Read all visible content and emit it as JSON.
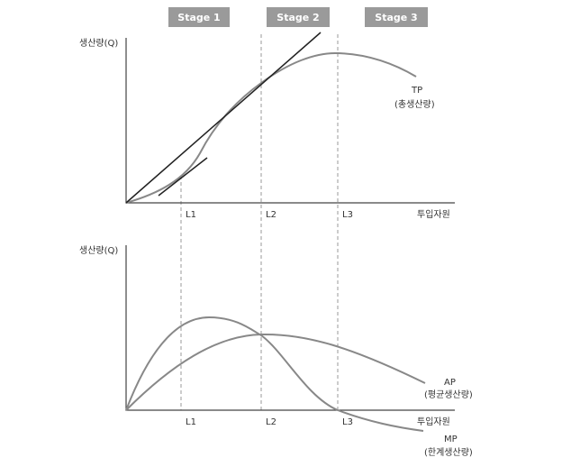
{
  "stages": [
    "Stage 1",
    "Stage 2",
    "Stage 3"
  ],
  "top_chart": {
    "y_axis_label": "생산량(Q)",
    "x_axis_label": "투입자원",
    "x_markers": [
      "L1",
      "L2",
      "L3"
    ],
    "curve_labels": {
      "tp": {
        "name": "TP",
        "description": "(총생산량)"
      }
    }
  },
  "bottom_chart": {
    "y_axis_label": "생산량(Q)",
    "x_axis_label": "투입자원",
    "x_markers": [
      "L1",
      "L2",
      "L3"
    ],
    "curve_labels": {
      "ap": {
        "name": "AP",
        "description": "(평균생산량)"
      },
      "mp": {
        "name": "MP",
        "description": "(한계생산량)"
      }
    }
  }
}
